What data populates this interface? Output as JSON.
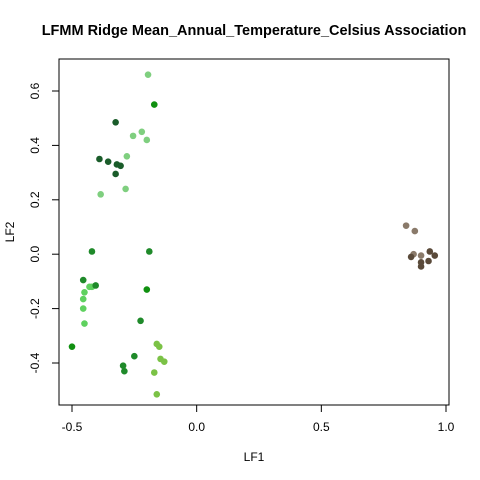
{
  "chart_data": {
    "type": "scatter",
    "title": "LFMM Ridge Mean_Annual_Temperature_Celsius Association",
    "xlabel": "LF1",
    "ylabel": "LF2",
    "xlim": [
      -0.55,
      1.0
    ],
    "ylim": [
      -0.56,
      0.7
    ],
    "x_ticks": [
      -0.5,
      0.0,
      0.5,
      1.0
    ],
    "x_tick_labels": [
      "-0.5",
      "0.0",
      "0.5",
      "1.0"
    ],
    "y_ticks": [
      -0.4,
      -0.2,
      0.0,
      0.2,
      0.4,
      0.6
    ],
    "y_tick_labels": [
      "-0.4",
      "-0.2",
      "0.0",
      "0.2",
      "0.4",
      "0.6"
    ],
    "grid": false,
    "legend": "none",
    "points": [
      {
        "x": -0.195,
        "y": 0.66,
        "color": "#7fcf7f"
      },
      {
        "x": -0.17,
        "y": 0.55,
        "color": "#109010"
      },
      {
        "x": -0.325,
        "y": 0.485,
        "color": "#1a5c2a"
      },
      {
        "x": -0.255,
        "y": 0.435,
        "color": "#7fcf7f"
      },
      {
        "x": -0.22,
        "y": 0.45,
        "color": "#7fcf7f"
      },
      {
        "x": -0.2,
        "y": 0.42,
        "color": "#7fcf7f"
      },
      {
        "x": -0.28,
        "y": 0.36,
        "color": "#7fcf7f"
      },
      {
        "x": -0.39,
        "y": 0.35,
        "color": "#1a5c2a"
      },
      {
        "x": -0.355,
        "y": 0.34,
        "color": "#1a5c2a"
      },
      {
        "x": -0.32,
        "y": 0.33,
        "color": "#1a5c2a"
      },
      {
        "x": -0.305,
        "y": 0.325,
        "color": "#1a5c2a"
      },
      {
        "x": -0.325,
        "y": 0.295,
        "color": "#1a5c2a"
      },
      {
        "x": -0.385,
        "y": 0.22,
        "color": "#7fcf7f"
      },
      {
        "x": -0.285,
        "y": 0.24,
        "color": "#7fcf7f"
      },
      {
        "x": -0.42,
        "y": 0.01,
        "color": "#1f8a2a"
      },
      {
        "x": -0.19,
        "y": 0.01,
        "color": "#1f8a2a"
      },
      {
        "x": -0.455,
        "y": -0.095,
        "color": "#1f8a2a"
      },
      {
        "x": -0.43,
        "y": -0.12,
        "color": "#5fd15f"
      },
      {
        "x": -0.42,
        "y": -0.12,
        "color": "#5fd15f"
      },
      {
        "x": -0.405,
        "y": -0.115,
        "color": "#1f8a2a"
      },
      {
        "x": -0.45,
        "y": -0.14,
        "color": "#5fd15f"
      },
      {
        "x": -0.455,
        "y": -0.165,
        "color": "#5fd15f"
      },
      {
        "x": -0.2,
        "y": -0.13,
        "color": "#109010"
      },
      {
        "x": -0.455,
        "y": -0.2,
        "color": "#5fd15f"
      },
      {
        "x": -0.45,
        "y": -0.255,
        "color": "#5fd15f"
      },
      {
        "x": -0.225,
        "y": -0.245,
        "color": "#1f8a2a"
      },
      {
        "x": -0.5,
        "y": -0.34,
        "color": "#109010"
      },
      {
        "x": -0.16,
        "y": -0.33,
        "color": "#7bc246"
      },
      {
        "x": -0.15,
        "y": -0.34,
        "color": "#7bc246"
      },
      {
        "x": -0.145,
        "y": -0.385,
        "color": "#7bc246"
      },
      {
        "x": -0.13,
        "y": -0.395,
        "color": "#7bc246"
      },
      {
        "x": -0.25,
        "y": -0.375,
        "color": "#1f8a2a"
      },
      {
        "x": -0.295,
        "y": -0.41,
        "color": "#1f8a2a"
      },
      {
        "x": -0.29,
        "y": -0.43,
        "color": "#1f8a2a"
      },
      {
        "x": -0.17,
        "y": -0.435,
        "color": "#7bc246"
      },
      {
        "x": -0.16,
        "y": -0.515,
        "color": "#7bc246"
      },
      {
        "x": 0.84,
        "y": 0.105,
        "color": "#8a7a6a"
      },
      {
        "x": 0.875,
        "y": 0.085,
        "color": "#8a7a6a"
      },
      {
        "x": 0.935,
        "y": 0.01,
        "color": "#5a4a3a"
      },
      {
        "x": 0.87,
        "y": 0.0,
        "color": "#8a7a6a"
      },
      {
        "x": 0.86,
        "y": -0.01,
        "color": "#5a4a3a"
      },
      {
        "x": 0.9,
        "y": -0.005,
        "color": "#8a7a6a"
      },
      {
        "x": 0.955,
        "y": -0.005,
        "color": "#5a4a3a"
      },
      {
        "x": 0.9,
        "y": -0.03,
        "color": "#5a4a3a"
      },
      {
        "x": 0.93,
        "y": -0.025,
        "color": "#5a4a3a"
      },
      {
        "x": 0.9,
        "y": -0.045,
        "color": "#5a4a3a"
      }
    ]
  }
}
